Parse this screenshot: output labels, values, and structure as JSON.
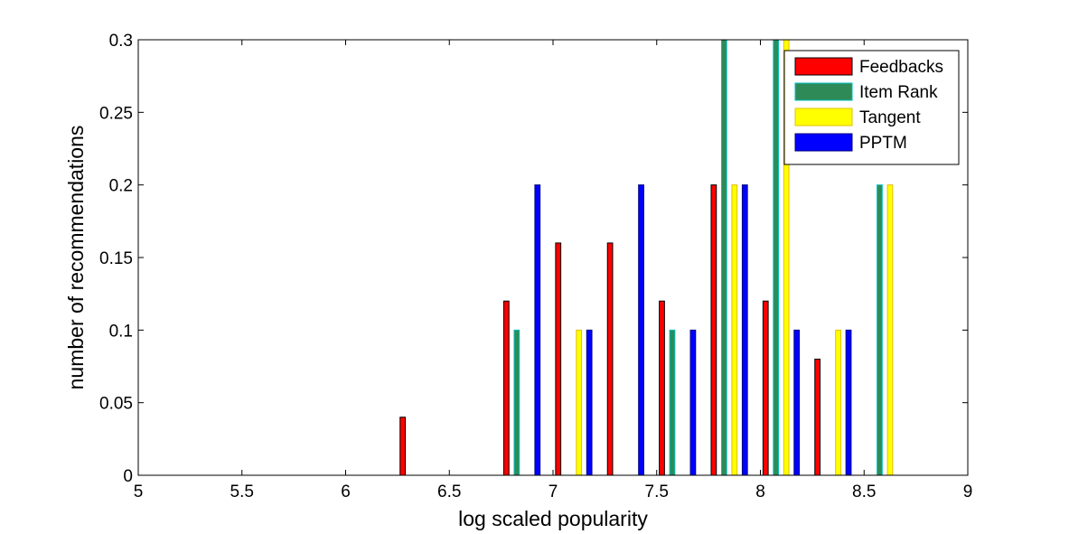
{
  "chart_data": {
    "type": "bar",
    "title": "",
    "xlabel": "log scaled popularity",
    "ylabel": "number of recommendations",
    "xlim": [
      5,
      9
    ],
    "ylim": [
      0,
      0.3
    ],
    "xticks": [
      "5",
      "5.5",
      "6",
      "6.5",
      "7",
      "7.5",
      "8",
      "8.5",
      "9"
    ],
    "yticks": [
      "0",
      "0.05",
      "0.1",
      "0.15",
      "0.2",
      "0.25",
      "0.3"
    ],
    "grid": false,
    "legend_position": "top-right",
    "categories": [
      5.1,
      5.35,
      5.6,
      5.85,
      6.1,
      6.35,
      6.6,
      6.85,
      7.1,
      7.35,
      7.6,
      7.85,
      8.1,
      8.35,
      8.6,
      8.85
    ],
    "series": [
      {
        "name": "Feedbacks",
        "color": "#ff0000",
        "edge": "#000000",
        "values": [
          0,
          0,
          0,
          0,
          0,
          0.04,
          0,
          0.12,
          0.16,
          0.16,
          0.12,
          0.2,
          0.12,
          0.08,
          0,
          0
        ]
      },
      {
        "name": "Item Rank",
        "color": "#2e8b57",
        "edge": "#00bfbf",
        "values": [
          0,
          0,
          0,
          0,
          0,
          0,
          0,
          0.1,
          0,
          0,
          0.1,
          0.3,
          0.3,
          0,
          0.2,
          0
        ]
      },
      {
        "name": "Tangent",
        "color": "#ffff00",
        "edge": "#e0c000",
        "values": [
          0,
          0,
          0,
          0,
          0,
          0,
          0,
          0,
          0.1,
          0,
          0,
          0.2,
          0.3,
          0.1,
          0.2,
          0
        ]
      },
      {
        "name": "PPTM",
        "color": "#0000ff",
        "edge": "#000080",
        "values": [
          0,
          0,
          0,
          0,
          0,
          0,
          0,
          0.2,
          0.1,
          0.2,
          0.1,
          0.2,
          0.1,
          0.1,
          0,
          0
        ]
      }
    ]
  }
}
